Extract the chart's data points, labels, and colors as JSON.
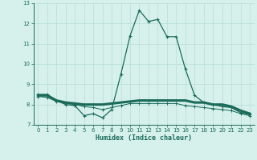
{
  "title": "",
  "xlabel": "Humidex (Indice chaleur)",
  "ylabel": "",
  "background_color": "#d6f0ec",
  "grid_color": "#b8ddd8",
  "line_color": "#1a6b5a",
  "xlim": [
    -0.5,
    23.5
  ],
  "ylim": [
    7,
    13
  ],
  "yticks": [
    7,
    8,
    9,
    10,
    11,
    12,
    13
  ],
  "xticks": [
    0,
    1,
    2,
    3,
    4,
    5,
    6,
    7,
    8,
    9,
    10,
    11,
    12,
    13,
    14,
    15,
    16,
    17,
    18,
    19,
    20,
    21,
    22,
    23
  ],
  "line1_x": [
    0,
    1,
    2,
    3,
    4,
    5,
    6,
    7,
    8,
    9,
    10,
    11,
    12,
    13,
    14,
    15,
    16,
    17,
    18,
    19,
    20,
    21,
    22,
    23
  ],
  "line1_y": [
    8.5,
    8.5,
    8.2,
    8.0,
    7.95,
    7.45,
    7.55,
    7.35,
    7.75,
    9.5,
    11.4,
    12.65,
    12.1,
    12.2,
    11.35,
    11.35,
    9.75,
    8.45,
    8.1,
    8.0,
    7.9,
    7.85,
    7.6,
    7.5
  ],
  "line2_x": [
    0,
    1,
    2,
    3,
    4,
    5,
    6,
    7,
    8,
    9,
    10,
    11,
    12,
    13,
    14,
    15,
    16,
    17,
    18,
    19,
    20,
    21,
    22,
    23
  ],
  "line2_y": [
    8.45,
    8.45,
    8.2,
    8.1,
    8.05,
    8.0,
    8.0,
    8.0,
    8.05,
    8.1,
    8.15,
    8.2,
    8.2,
    8.2,
    8.2,
    8.2,
    8.2,
    8.1,
    8.1,
    8.0,
    8.0,
    7.9,
    7.7,
    7.55
  ],
  "line3_x": [
    0,
    1,
    2,
    3,
    4,
    5,
    6,
    7,
    8,
    9,
    10,
    11,
    12,
    13,
    14,
    15,
    16,
    17,
    18,
    19,
    20,
    21,
    22,
    23
  ],
  "line3_y": [
    8.4,
    8.35,
    8.15,
    8.05,
    8.0,
    7.9,
    7.85,
    7.75,
    7.85,
    7.95,
    8.05,
    8.05,
    8.05,
    8.05,
    8.05,
    8.05,
    7.95,
    7.9,
    7.85,
    7.8,
    7.75,
    7.7,
    7.55,
    7.45
  ]
}
